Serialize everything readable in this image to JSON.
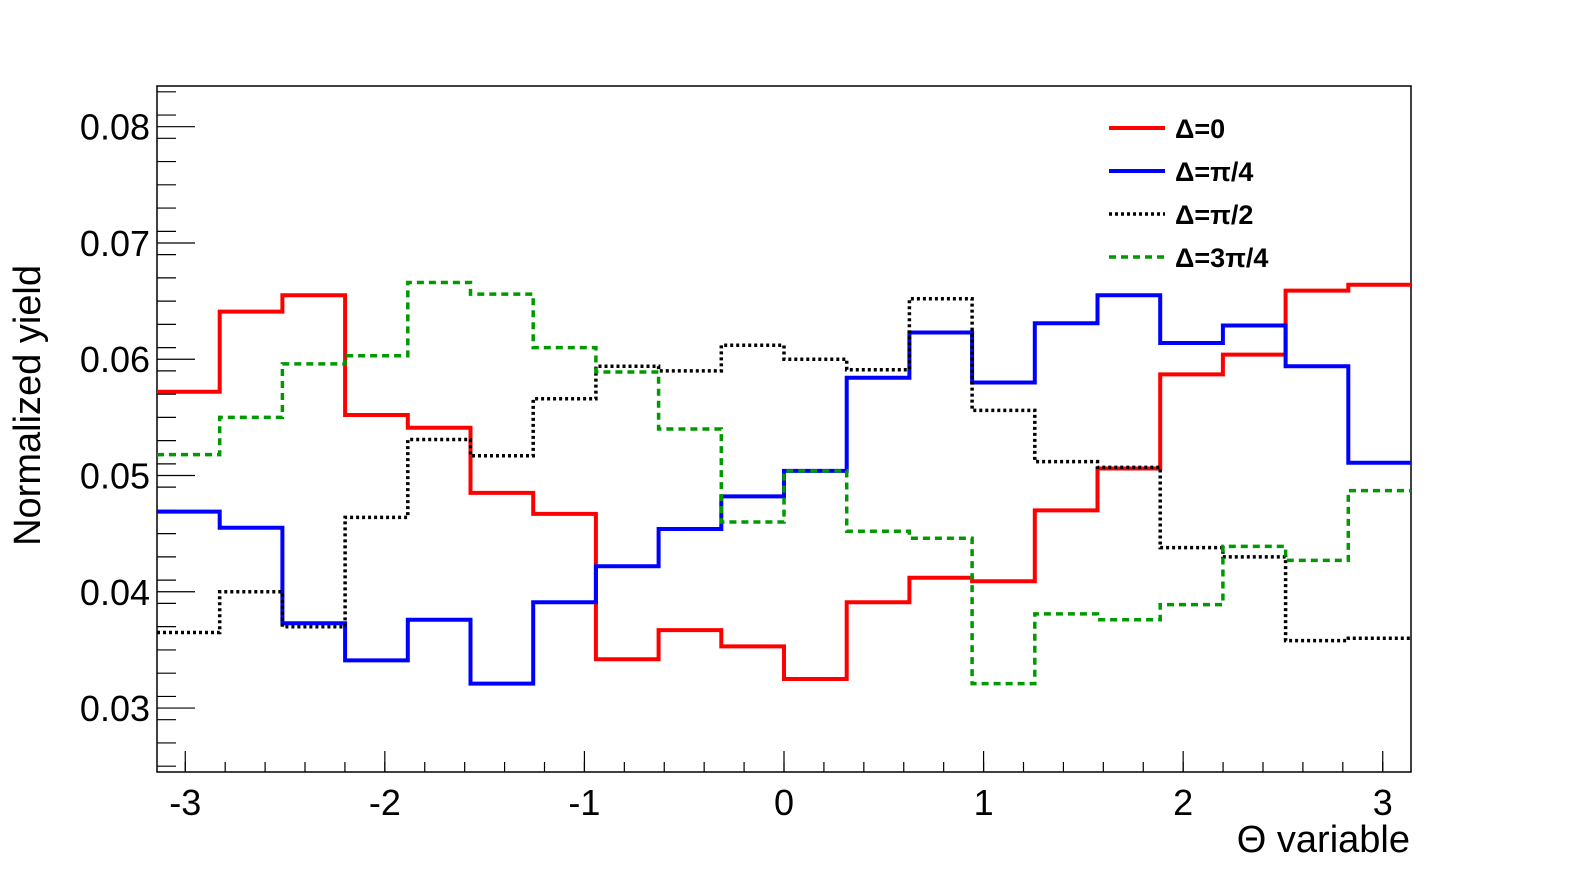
{
  "chart_data": {
    "type": "line",
    "step": true,
    "xlabel": "Θ variable",
    "ylabel": "Normalized yield",
    "xlim": [
      -3.1416,
      3.1416
    ],
    "ylim": [
      0.0245,
      0.0835
    ],
    "xticks": [
      -3,
      -2,
      -1,
      0,
      1,
      2,
      3
    ],
    "xtick_labels": [
      "-3",
      "-2",
      "-1",
      "0",
      "1",
      "2",
      "3"
    ],
    "yticks": [
      0.03,
      0.04,
      0.05,
      0.06,
      0.07,
      0.08
    ],
    "ytick_labels": [
      "0.03",
      "0.04",
      "0.05",
      "0.06",
      "0.07",
      "0.08"
    ],
    "grid": false,
    "legend_position": "top-right",
    "bin_edges": [
      -3.1416,
      -2.8274,
      -2.5133,
      -2.1991,
      -1.885,
      -1.5708,
      -1.2566,
      -0.9425,
      -0.6283,
      -0.3142,
      0,
      0.3142,
      0.6283,
      0.9425,
      1.2566,
      1.5708,
      1.885,
      2.1991,
      2.5133,
      2.8274,
      3.1416
    ],
    "series": [
      {
        "name": "Δ=0",
        "color": "#ff0000",
        "style": "solid",
        "values": [
          0.0572,
          0.0641,
          0.0655,
          0.0552,
          0.0541,
          0.0485,
          0.0467,
          0.0342,
          0.0367,
          0.0353,
          0.0325,
          0.0391,
          0.0412,
          0.0409,
          0.047,
          0.0506,
          0.0587,
          0.0604,
          0.0659,
          0.0664
        ]
      },
      {
        "name": "Δ=π/4",
        "color": "#0000ff",
        "style": "solid",
        "values": [
          0.0469,
          0.0455,
          0.0373,
          0.0341,
          0.0376,
          0.0321,
          0.0391,
          0.0422,
          0.0454,
          0.0482,
          0.0504,
          0.0584,
          0.0623,
          0.058,
          0.0631,
          0.0655,
          0.0614,
          0.0629,
          0.0594,
          0.0511
        ]
      },
      {
        "name": "Δ=π/2",
        "color": "#000000",
        "style": "dotted",
        "values": [
          0.0365,
          0.04,
          0.037,
          0.0464,
          0.0531,
          0.0517,
          0.0566,
          0.0594,
          0.059,
          0.0612,
          0.06,
          0.0591,
          0.0652,
          0.0556,
          0.0512,
          0.0507,
          0.0438,
          0.043,
          0.0358,
          0.036
        ]
      },
      {
        "name": "Δ=3π/4",
        "color": "#009900",
        "style": "dashed",
        "values": [
          0.0518,
          0.055,
          0.0596,
          0.0603,
          0.0666,
          0.0656,
          0.061,
          0.0589,
          0.054,
          0.046,
          0.0504,
          0.0452,
          0.0446,
          0.0321,
          0.0381,
          0.0376,
          0.0389,
          0.0439,
          0.0427,
          0.0487
        ]
      }
    ]
  }
}
